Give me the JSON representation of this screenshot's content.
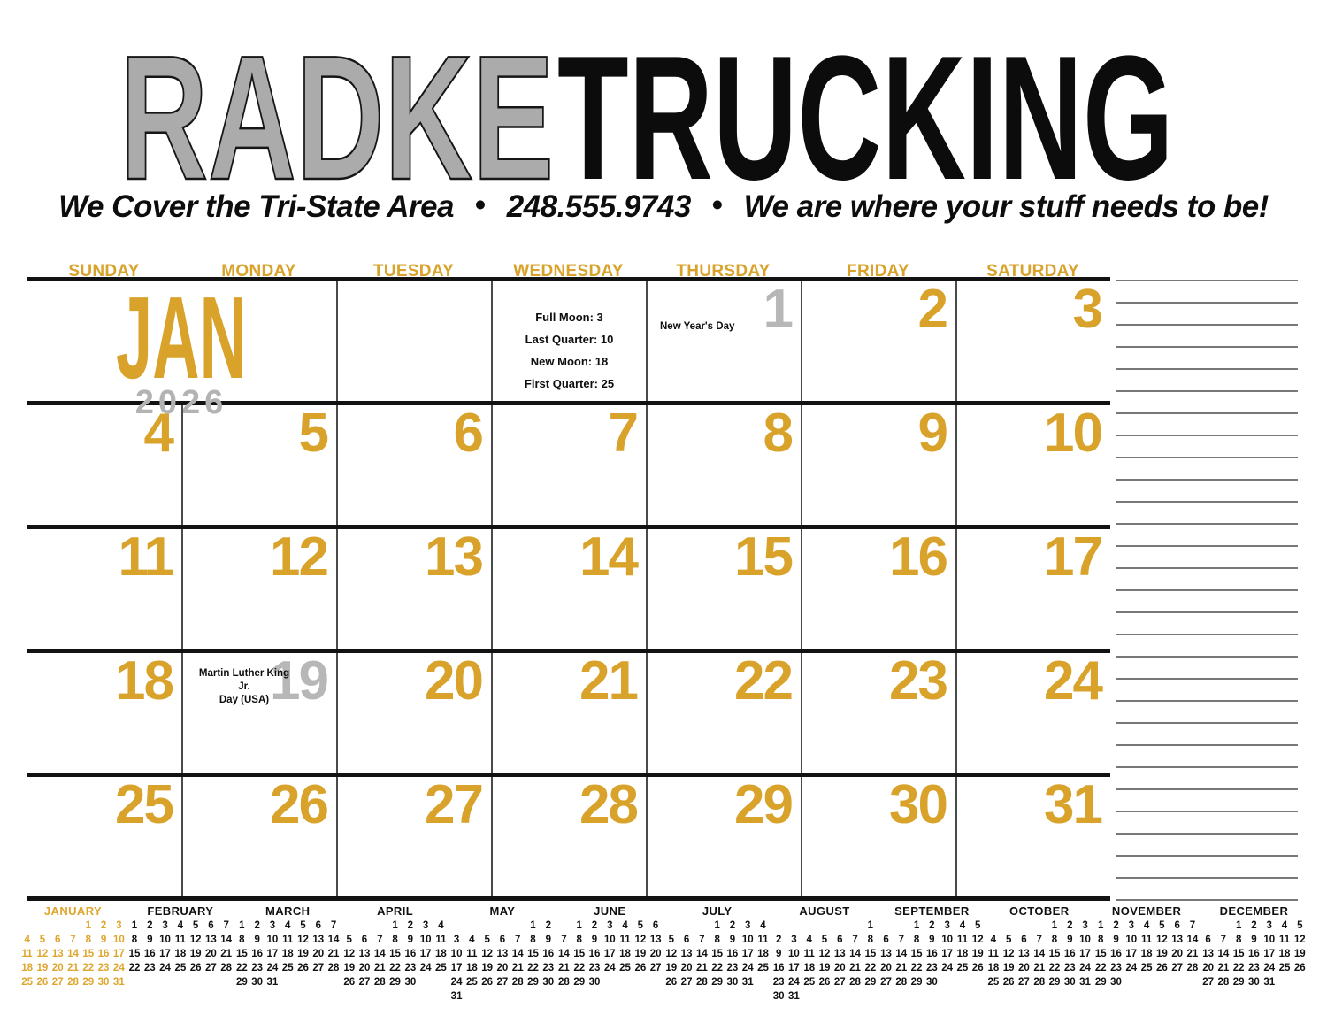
{
  "brand": {
    "name_gray": "RADKE",
    "name_black": "TRUCKING",
    "tagline": {
      "left": "We Cover the Tri-State Area",
      "phone": "248.555.9743",
      "right": "We are where your stuff needs to be!",
      "bullet": "•"
    }
  },
  "colors": {
    "gold": "#D9A32B",
    "gold_mini": "#DFA62E",
    "holiday_gray": "#B7B7B7",
    "logo_gray": "#ABABAB"
  },
  "calendar": {
    "month_abbr": "JAN",
    "year": "2026",
    "weekday_headers": [
      "SUNDAY",
      "MONDAY",
      "TUESDAY",
      "WEDNESDAY",
      "THURSDAY",
      "FRIDAY",
      "SATURDAY"
    ],
    "moon_phases": [
      "Full Moon: 3",
      "Last Quarter: 10",
      "New Moon: 18",
      "First Quarter: 25"
    ],
    "weeks": [
      {
        "cells": [
          {
            "type": "month_title"
          },
          {
            "type": "blank"
          },
          {
            "type": "moon"
          },
          {
            "type": "day",
            "num": "1",
            "muted": true,
            "holiday": [
              "New Year's Day"
            ]
          },
          {
            "type": "day",
            "num": "2"
          },
          {
            "type": "day",
            "num": "3"
          }
        ]
      },
      {
        "cells": [
          {
            "type": "day",
            "num": "4"
          },
          {
            "type": "day",
            "num": "5"
          },
          {
            "type": "day",
            "num": "6"
          },
          {
            "type": "day",
            "num": "7"
          },
          {
            "type": "day",
            "num": "8"
          },
          {
            "type": "day",
            "num": "9"
          },
          {
            "type": "day",
            "num": "10"
          }
        ]
      },
      {
        "cells": [
          {
            "type": "day",
            "num": "11"
          },
          {
            "type": "day",
            "num": "12"
          },
          {
            "type": "day",
            "num": "13"
          },
          {
            "type": "day",
            "num": "14"
          },
          {
            "type": "day",
            "num": "15"
          },
          {
            "type": "day",
            "num": "16"
          },
          {
            "type": "day",
            "num": "17"
          }
        ]
      },
      {
        "cells": [
          {
            "type": "day",
            "num": "18"
          },
          {
            "type": "day",
            "num": "19",
            "muted": true,
            "holiday": [
              "Martin Luther King Jr.",
              "Day (USA)"
            ]
          },
          {
            "type": "day",
            "num": "20"
          },
          {
            "type": "day",
            "num": "21"
          },
          {
            "type": "day",
            "num": "22"
          },
          {
            "type": "day",
            "num": "23"
          },
          {
            "type": "day",
            "num": "24"
          }
        ]
      },
      {
        "cells": [
          {
            "type": "day",
            "num": "25"
          },
          {
            "type": "day",
            "num": "26"
          },
          {
            "type": "day",
            "num": "27"
          },
          {
            "type": "day",
            "num": "28"
          },
          {
            "type": "day",
            "num": "29"
          },
          {
            "type": "day",
            "num": "30"
          },
          {
            "type": "day",
            "num": "31"
          }
        ]
      }
    ]
  },
  "notes": {
    "line_count": 29
  },
  "mini_months": [
    {
      "name": "JANUARY",
      "highlight": true,
      "rows": [
        [
          "",
          "",
          "",
          "",
          "1",
          "2",
          "3"
        ],
        [
          "4",
          "5",
          "6",
          "7",
          "8",
          "9",
          "10"
        ],
        [
          "11",
          "12",
          "13",
          "14",
          "15",
          "16",
          "17"
        ],
        [
          "18",
          "19",
          "20",
          "21",
          "22",
          "23",
          "24"
        ],
        [
          "25",
          "26",
          "27",
          "28",
          "29",
          "30",
          "31"
        ]
      ]
    },
    {
      "name": "FEBRUARY",
      "highlight": false,
      "rows": [
        [
          "1",
          "2",
          "3",
          "4",
          "5",
          "6",
          "7"
        ],
        [
          "8",
          "9",
          "10",
          "11",
          "12",
          "13",
          "14"
        ],
        [
          "15",
          "16",
          "17",
          "18",
          "19",
          "20",
          "21"
        ],
        [
          "22",
          "23",
          "24",
          "25",
          "26",
          "27",
          "28"
        ]
      ]
    },
    {
      "name": "MARCH",
      "highlight": false,
      "rows": [
        [
          "1",
          "2",
          "3",
          "4",
          "5",
          "6",
          "7"
        ],
        [
          "8",
          "9",
          "10",
          "11",
          "12",
          "13",
          "14"
        ],
        [
          "15",
          "16",
          "17",
          "18",
          "19",
          "20",
          "21"
        ],
        [
          "22",
          "23",
          "24",
          "25",
          "26",
          "27",
          "28"
        ],
        [
          "29",
          "30",
          "31",
          "",
          "",
          "",
          ""
        ]
      ]
    },
    {
      "name": "APRIL",
      "highlight": false,
      "rows": [
        [
          "",
          "",
          "",
          "1",
          "2",
          "3",
          "4"
        ],
        [
          "5",
          "6",
          "7",
          "8",
          "9",
          "10",
          "11"
        ],
        [
          "12",
          "13",
          "14",
          "15",
          "16",
          "17",
          "18"
        ],
        [
          "19",
          "20",
          "21",
          "22",
          "23",
          "24",
          "25"
        ],
        [
          "26",
          "27",
          "28",
          "29",
          "30",
          "",
          ""
        ]
      ]
    },
    {
      "name": "MAY",
      "highlight": false,
      "rows": [
        [
          "",
          "",
          "",
          "",
          "",
          "1",
          "2"
        ],
        [
          "3",
          "4",
          "5",
          "6",
          "7",
          "8",
          "9"
        ],
        [
          "10",
          "11",
          "12",
          "13",
          "14",
          "15",
          "16"
        ],
        [
          "17",
          "18",
          "19",
          "20",
          "21",
          "22",
          "23"
        ],
        [
          "24",
          "25",
          "26",
          "27",
          "28",
          "29",
          "30"
        ],
        [
          "31",
          "",
          "",
          "",
          "",
          "",
          ""
        ]
      ]
    },
    {
      "name": "JUNE",
      "highlight": false,
      "rows": [
        [
          "",
          "1",
          "2",
          "3",
          "4",
          "5",
          "6"
        ],
        [
          "7",
          "8",
          "9",
          "10",
          "11",
          "12",
          "13"
        ],
        [
          "14",
          "15",
          "16",
          "17",
          "18",
          "19",
          "20"
        ],
        [
          "21",
          "22",
          "23",
          "24",
          "25",
          "26",
          "27"
        ],
        [
          "28",
          "29",
          "30",
          "",
          "",
          "",
          ""
        ]
      ]
    },
    {
      "name": "JULY",
      "highlight": false,
      "rows": [
        [
          "",
          "",
          "",
          "1",
          "2",
          "3",
          "4"
        ],
        [
          "5",
          "6",
          "7",
          "8",
          "9",
          "10",
          "11"
        ],
        [
          "12",
          "13",
          "14",
          "15",
          "16",
          "17",
          "18"
        ],
        [
          "19",
          "20",
          "21",
          "22",
          "23",
          "24",
          "25"
        ],
        [
          "26",
          "27",
          "28",
          "29",
          "30",
          "31",
          ""
        ]
      ]
    },
    {
      "name": "AUGUST",
      "highlight": false,
      "rows": [
        [
          "",
          "",
          "",
          "",
          "",
          "",
          "1"
        ],
        [
          "2",
          "3",
          "4",
          "5",
          "6",
          "7",
          "8"
        ],
        [
          "9",
          "10",
          "11",
          "12",
          "13",
          "14",
          "15"
        ],
        [
          "16",
          "17",
          "18",
          "19",
          "20",
          "21",
          "22"
        ],
        [
          "23",
          "24",
          "25",
          "26",
          "27",
          "28",
          "29"
        ],
        [
          "30",
          "31",
          "",
          "",
          "",
          "",
          ""
        ]
      ]
    },
    {
      "name": "SEPTEMBER",
      "highlight": false,
      "rows": [
        [
          "",
          "",
          "1",
          "2",
          "3",
          "4",
          "5"
        ],
        [
          "6",
          "7",
          "8",
          "9",
          "10",
          "11",
          "12"
        ],
        [
          "13",
          "14",
          "15",
          "16",
          "17",
          "18",
          "19"
        ],
        [
          "20",
          "21",
          "22",
          "23",
          "24",
          "25",
          "26"
        ],
        [
          "27",
          "28",
          "29",
          "30",
          "",
          "",
          ""
        ]
      ]
    },
    {
      "name": "OCTOBER",
      "highlight": false,
      "rows": [
        [
          "",
          "",
          "",
          "",
          "1",
          "2",
          "3"
        ],
        [
          "4",
          "5",
          "6",
          "7",
          "8",
          "9",
          "10"
        ],
        [
          "11",
          "12",
          "13",
          "14",
          "15",
          "16",
          "17"
        ],
        [
          "18",
          "19",
          "20",
          "21",
          "22",
          "23",
          "24"
        ],
        [
          "25",
          "26",
          "27",
          "28",
          "29",
          "30",
          "31"
        ]
      ]
    },
    {
      "name": "NOVEMBER",
      "highlight": false,
      "rows": [
        [
          "1",
          "2",
          "3",
          "4",
          "5",
          "6",
          "7"
        ],
        [
          "8",
          "9",
          "10",
          "11",
          "12",
          "13",
          "14"
        ],
        [
          "15",
          "16",
          "17",
          "18",
          "19",
          "20",
          "21"
        ],
        [
          "22",
          "23",
          "24",
          "25",
          "26",
          "27",
          "28"
        ],
        [
          "29",
          "30",
          "",
          "",
          "",
          "",
          ""
        ]
      ]
    },
    {
      "name": "DECEMBER",
      "highlight": false,
      "rows": [
        [
          "",
          "",
          "1",
          "2",
          "3",
          "4",
          "5"
        ],
        [
          "6",
          "7",
          "8",
          "9",
          "10",
          "11",
          "12"
        ],
        [
          "13",
          "14",
          "15",
          "16",
          "17",
          "18",
          "19"
        ],
        [
          "20",
          "21",
          "22",
          "23",
          "24",
          "25",
          "26"
        ],
        [
          "27",
          "28",
          "29",
          "30",
          "31",
          "",
          ""
        ]
      ]
    }
  ]
}
